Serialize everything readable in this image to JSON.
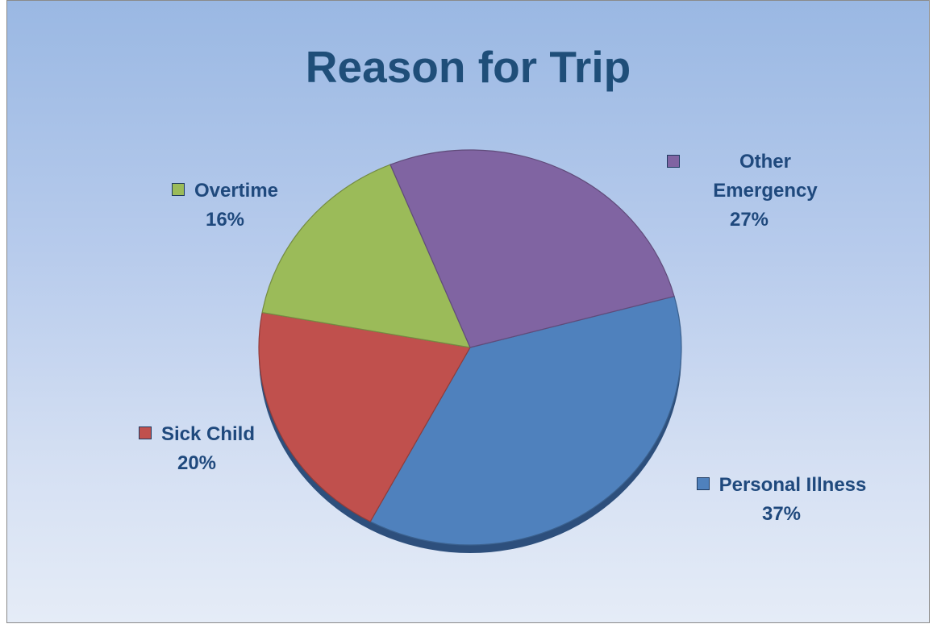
{
  "chart_data": {
    "type": "pie",
    "title": "Reason for Trip",
    "slices": [
      {
        "name": "Personal Illness",
        "value": 37,
        "label": "37%",
        "color": "#4f81bd"
      },
      {
        "name": "Sick Child",
        "value": 20,
        "label": "20%",
        "color": "#c0504d"
      },
      {
        "name": "Overtime",
        "value": 16,
        "label": "16%",
        "color": "#9bbb59"
      },
      {
        "name": "Other Emergency",
        "value": 27,
        "label": "27%",
        "color": "#8064a2"
      }
    ],
    "legend": "none",
    "data_labels": "outside, category name with percentage"
  }
}
